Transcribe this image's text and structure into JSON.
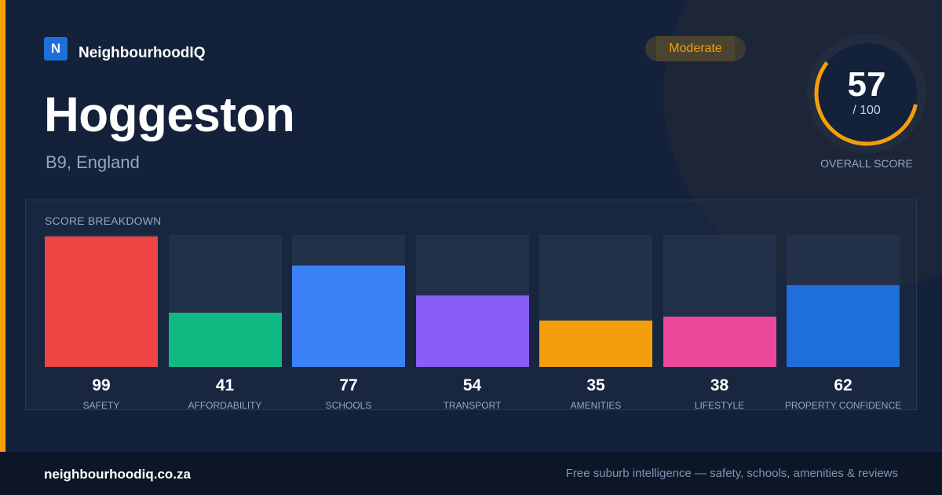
{
  "brand": {
    "logo_letter": "N",
    "name": "NeighbourhoodIQ",
    "logo_color": "#1e6fdc"
  },
  "suburb": {
    "name": "Hoggeston",
    "location": "B9, England"
  },
  "rating_badge": {
    "label": "Moderate",
    "color": "#f59e0b"
  },
  "overall_score": {
    "value": "57",
    "max_text": "/ 100",
    "fraction": 0.57,
    "label": "OVERALL SCORE",
    "ring_color": "#f59e0b"
  },
  "breakdown": {
    "title": "SCORE BREAKDOWN",
    "max": 100,
    "items": [
      {
        "label": "SAFETY",
        "value": 99,
        "color": "#ef4444"
      },
      {
        "label": "AFFORDABILITY",
        "value": 41,
        "color": "#10b981"
      },
      {
        "label": "SCHOOLS",
        "value": 77,
        "color": "#3b82f6"
      },
      {
        "label": "TRANSPORT",
        "value": 54,
        "color": "#8b5cf6"
      },
      {
        "label": "AMENITIES",
        "value": 35,
        "color": "#f59e0b"
      },
      {
        "label": "LIFESTYLE",
        "value": 38,
        "color": "#ec4899"
      },
      {
        "label": "PROPERTY CONFIDENCE",
        "value": 62,
        "color": "#1e6fdc"
      }
    ]
  },
  "footer": {
    "domain": "neighbourhoodiq.co.za",
    "tagline": "Free suburb intelligence — safety, schools, amenities & reviews"
  },
  "colors": {
    "accent": "#f59e0b",
    "background": "#13213b",
    "footer_background": "#0d1627"
  }
}
